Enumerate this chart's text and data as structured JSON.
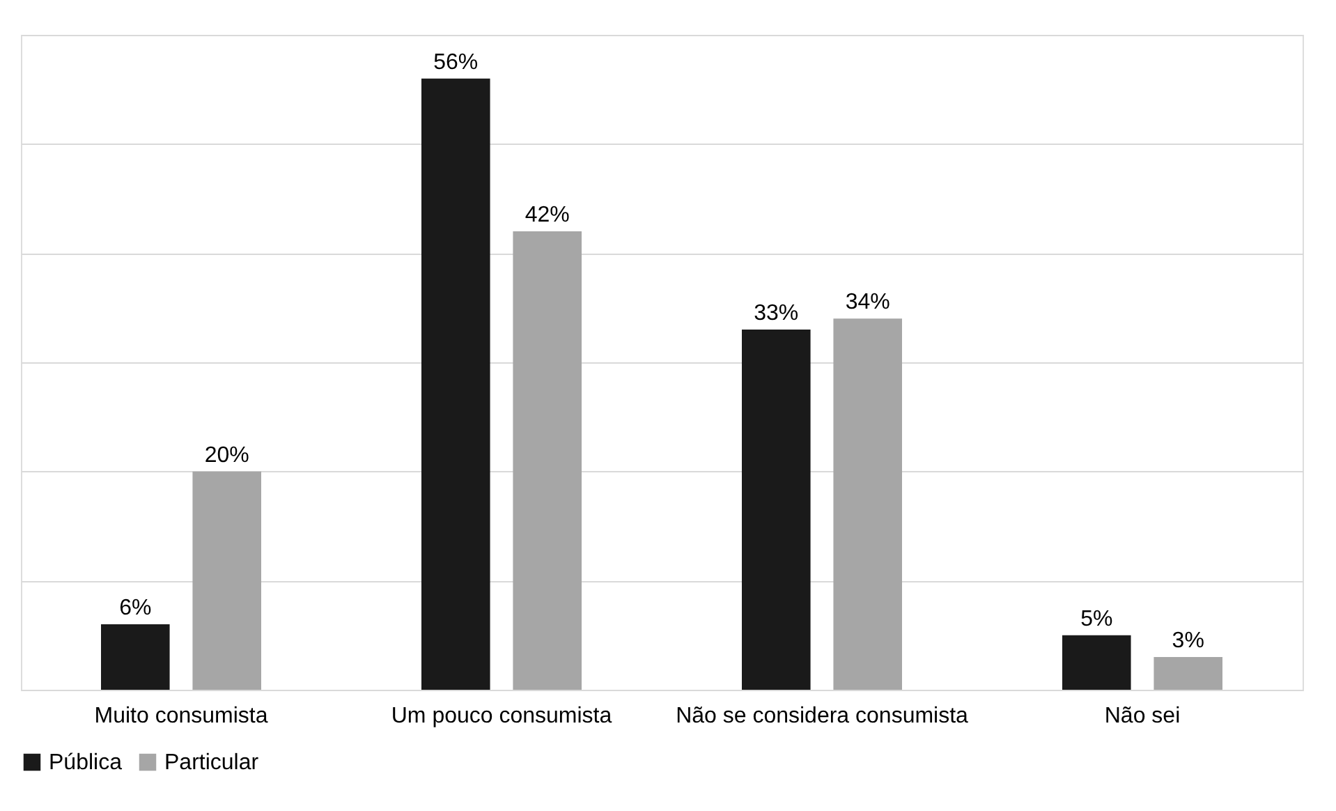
{
  "chart_data": {
    "type": "bar",
    "categories": [
      "Muito consumista",
      "Um pouco consumista",
      "Não se considera consumista",
      "Não sei"
    ],
    "series": [
      {
        "name": "Pública",
        "color": "#1a1a1a",
        "values": [
          6,
          56,
          33,
          5
        ],
        "value_labels": [
          "6%",
          "56%",
          "33%",
          "5%"
        ]
      },
      {
        "name": "Particular",
        "color": "#a6a6a6",
        "values": [
          20,
          42,
          34,
          3
        ],
        "value_labels": [
          "20%",
          "42%",
          "34%",
          "3%"
        ]
      }
    ],
    "tick_labels": "x",
    "grid": "y",
    "legend": "bottom"
  }
}
